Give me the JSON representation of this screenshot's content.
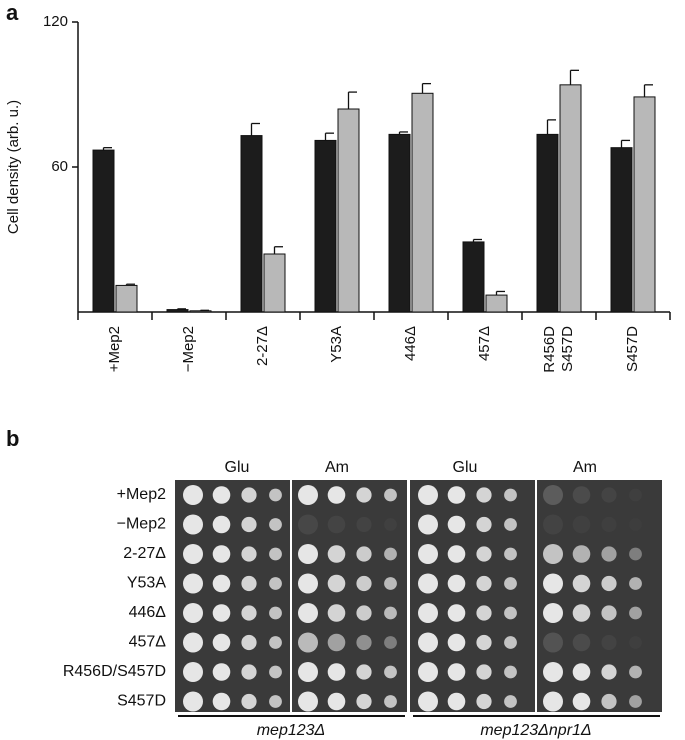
{
  "chart_data": {
    "type": "bar",
    "panel_label": "a",
    "y_label": "Cell density (arb. u.)",
    "categories": [
      "+Mep2",
      "−Mep2",
      "2-27Δ",
      "Y53A",
      "446Δ",
      "457Δ",
      [
        "R456D",
        "S457D"
      ],
      "S457D"
    ],
    "series": [
      {
        "color": "#1c1c1c",
        "values": [
          67,
          1,
          73,
          71,
          73.5,
          29,
          73.5,
          68
        ],
        "errors": [
          1,
          0.3,
          5,
          3,
          1,
          1,
          6,
          3
        ]
      },
      {
        "color": "#b8b8b8",
        "values": [
          11,
          0.5,
          24,
          84,
          90.5,
          7,
          94,
          89
        ],
        "errors": [
          0.5,
          0.2,
          3,
          7,
          4,
          1.5,
          6,
          5
        ]
      }
    ],
    "ylim": [
      0,
      120
    ],
    "yticks": [
      60,
      120
    ]
  },
  "panel_b": {
    "panel_label": "b",
    "column_headers": [
      "Glu",
      "Am",
      "Glu",
      "Am"
    ],
    "rows": [
      "+Mep2",
      "−Mep2",
      "2-27Δ",
      "Y53A",
      "446Δ",
      "457Δ",
      "R456D/S457D",
      "S457D"
    ],
    "strains": [
      "mep123Δ",
      "mep123Δnpr1Δ"
    ]
  }
}
